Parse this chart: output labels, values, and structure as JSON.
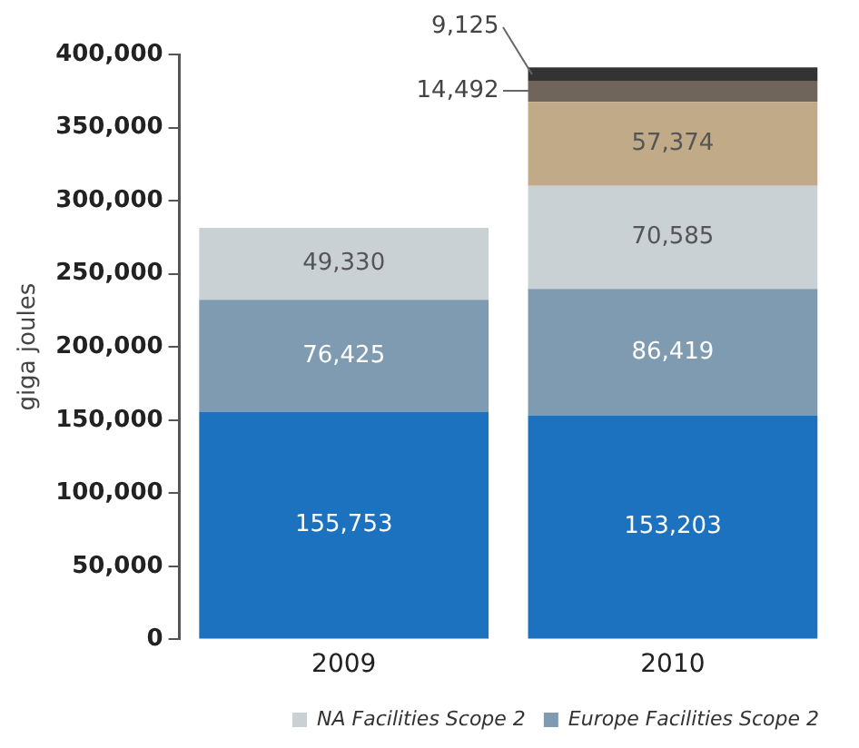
{
  "chart_data": {
    "type": "bar",
    "stacked": true,
    "ylabel": "giga joules",
    "categories": [
      "2009",
      "2010"
    ],
    "series": [
      {
        "color": "#1c72bf",
        "values": [
          155753,
          153203
        ],
        "value_labels": [
          "155,753",
          "153,203"
        ]
      },
      {
        "name": "Europe Facilities Scope 2",
        "color": "#7e9bb2",
        "values": [
          76425,
          86419
        ],
        "value_labels": [
          "76,425",
          "86,419"
        ]
      },
      {
        "name": "NA Facilities Scope 2",
        "color": "#c9d1d5",
        "values": [
          49330,
          70585
        ],
        "value_labels": [
          "49,330",
          "70,585"
        ]
      },
      {
        "color": "#c0aa88",
        "values": [
          null,
          57374
        ],
        "value_labels": [
          null,
          "57,374"
        ]
      },
      {
        "color": "#6f655b",
        "values": [
          null,
          14492
        ],
        "value_labels": [
          null,
          "14,492"
        ]
      },
      {
        "color": "#333333",
        "values": [
          null,
          9125
        ],
        "value_labels": [
          null,
          "9,125"
        ]
      }
    ],
    "ylim": [
      0,
      400000
    ],
    "yticks": [
      {
        "value": 0,
        "label": "0"
      },
      {
        "value": 50000,
        "label": "50,000"
      },
      {
        "value": 100000,
        "label": "100,000"
      },
      {
        "value": 150000,
        "label": "150,000"
      },
      {
        "value": 200000,
        "label": "200,000"
      },
      {
        "value": 250000,
        "label": "250,000"
      },
      {
        "value": 300000,
        "label": "300,000"
      },
      {
        "value": 350000,
        "label": "350,000"
      },
      {
        "value": 400000,
        "label": "400,000"
      }
    ],
    "grid": false,
    "legend": "bottom"
  }
}
